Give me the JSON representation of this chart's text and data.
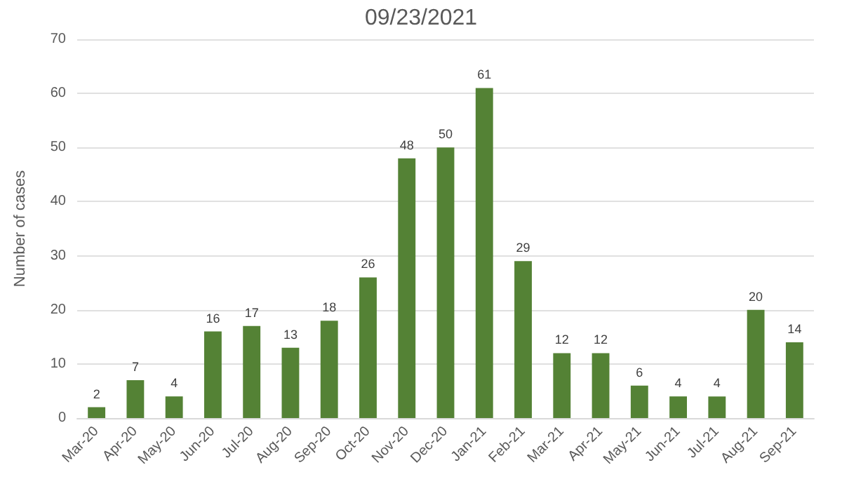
{
  "chart_data": {
    "type": "bar",
    "title": "09/23/2021",
    "ylabel": "Number of cases",
    "categories": [
      "Mar-20",
      "Apr-20",
      "May-20",
      "Jun-20",
      "Jul-20",
      "Aug-20",
      "Sep-20",
      "Oct-20",
      "Nov-20",
      "Dec-20",
      "Jan-21",
      "Feb-21",
      "Mar-21",
      "Apr-21",
      "May-21",
      "Jun-21",
      "Jul-21",
      "Aug-21",
      "Sep-21"
    ],
    "values": [
      2,
      7,
      4,
      16,
      17,
      13,
      18,
      26,
      48,
      50,
      61,
      29,
      12,
      12,
      6,
      4,
      4,
      20,
      14
    ],
    "color": "#548235",
    "ylim": [
      0,
      70
    ],
    "yticks": [
      0,
      10,
      20,
      30,
      40,
      50,
      60,
      70
    ],
    "grid": "y",
    "data_labels": true
  }
}
